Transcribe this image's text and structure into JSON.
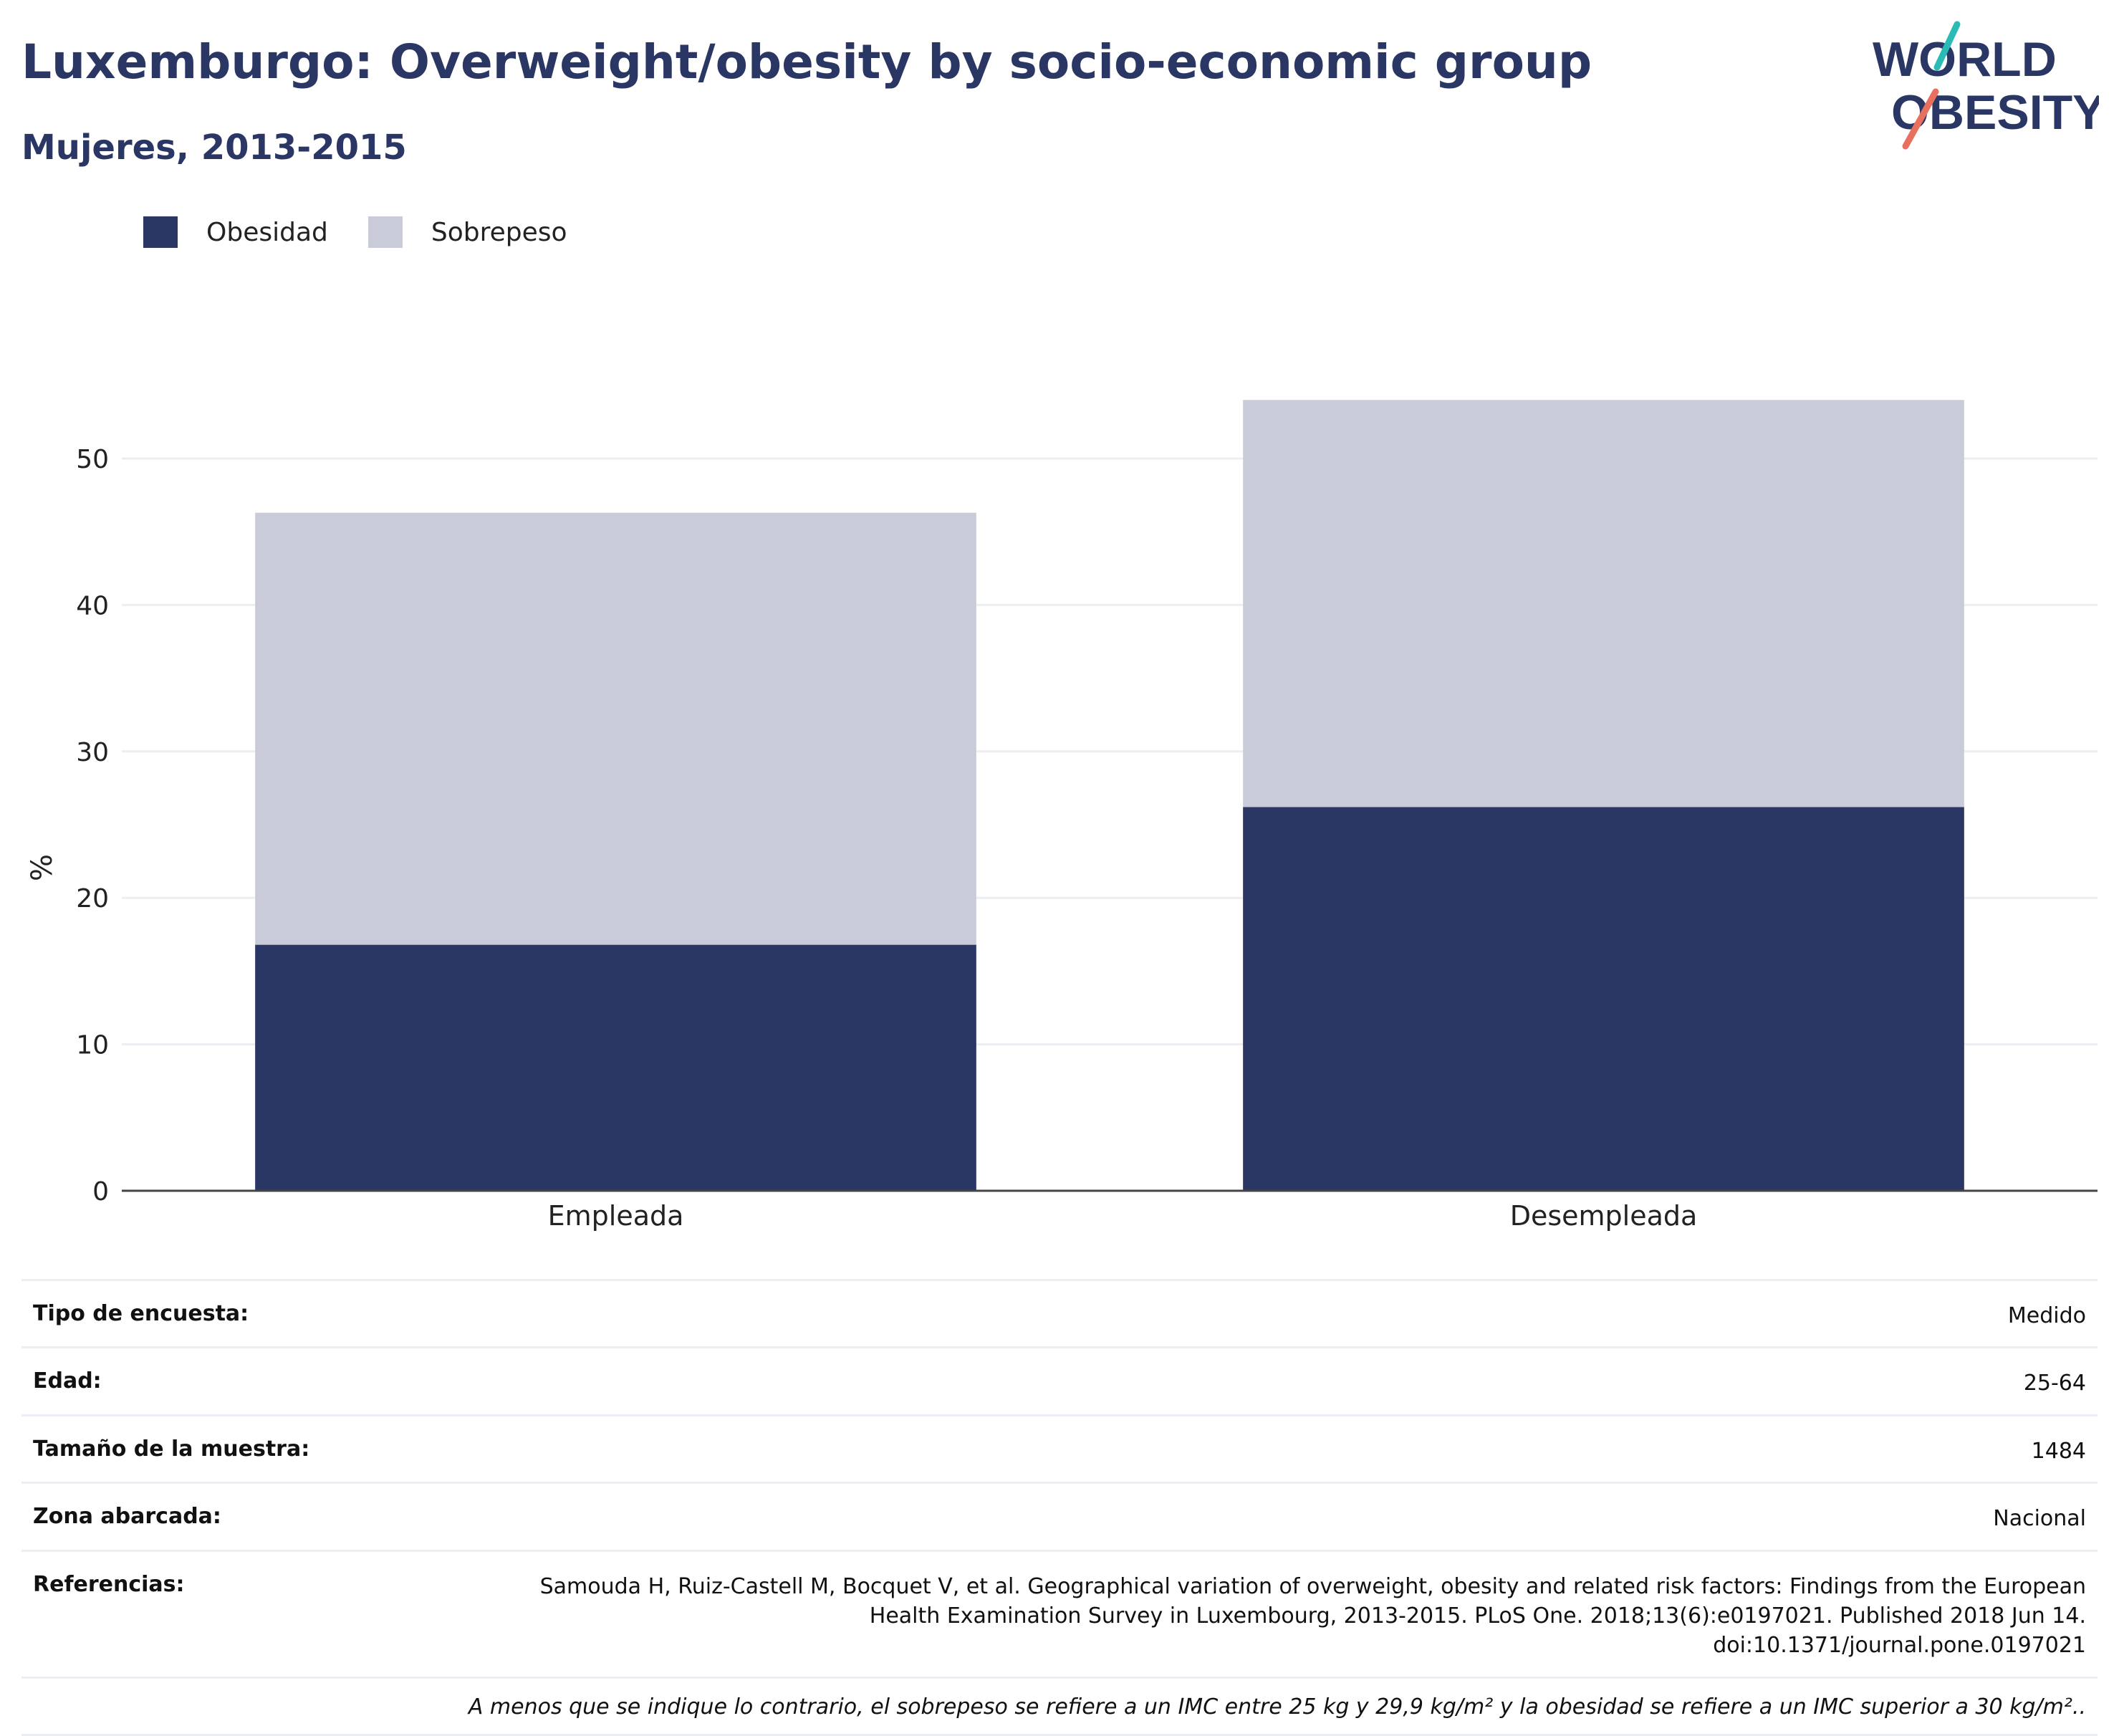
{
  "header": {
    "title": "Luxemburgo: Overweight/obesity by socio-economic group",
    "subtitle": "Mujeres, 2013-2015"
  },
  "logo": {
    "line1": "WORLD",
    "line2": "OBESITY"
  },
  "colors": {
    "obesidad": "#2a3663",
    "sobrepeso": "#c9ccd8",
    "accent_teal": "#2bbbb5",
    "accent_coral": "#e8705f"
  },
  "chart_data": {
    "type": "bar",
    "stacked": true,
    "categories": [
      "Empleada",
      "Desempleada"
    ],
    "series": [
      {
        "name": "Obesidad",
        "values": [
          16.8,
          26.2
        ]
      },
      {
        "name": "Sobrepeso",
        "values": [
          29.5,
          27.8
        ]
      }
    ],
    "ylabel": "%",
    "ylim": [
      0,
      55
    ],
    "yticks": [
      0,
      10,
      20,
      30,
      40,
      50
    ],
    "grid": true,
    "legend_position": "top-left"
  },
  "info": {
    "rows": [
      {
        "label": "Tipo de encuesta:",
        "value": "Medido"
      },
      {
        "label": "Edad:",
        "value": "25-64"
      },
      {
        "label": "Tamaño de la muestra:",
        "value": "1484"
      },
      {
        "label": "Zona abarcada:",
        "value": "Nacional"
      }
    ],
    "reference_label": "Referencias:",
    "reference": "Samouda H, Ruiz-Castell M, Bocquet V, et al. Geographical variation of overweight, obesity and related risk factors: Findings from the European Health Examination Survey in Luxembourg, 2013-2015. PLoS One. 2018;13(6):e0197021. Published 2018 Jun 14. doi:10.1371/journal.pone.0197021",
    "note": "A menos que se indique lo contrario, el sobrepeso se refiere a un IMC entre 25 kg y 29,9 kg/m² y la obesidad se refiere a un IMC superior a 30 kg/m².."
  }
}
